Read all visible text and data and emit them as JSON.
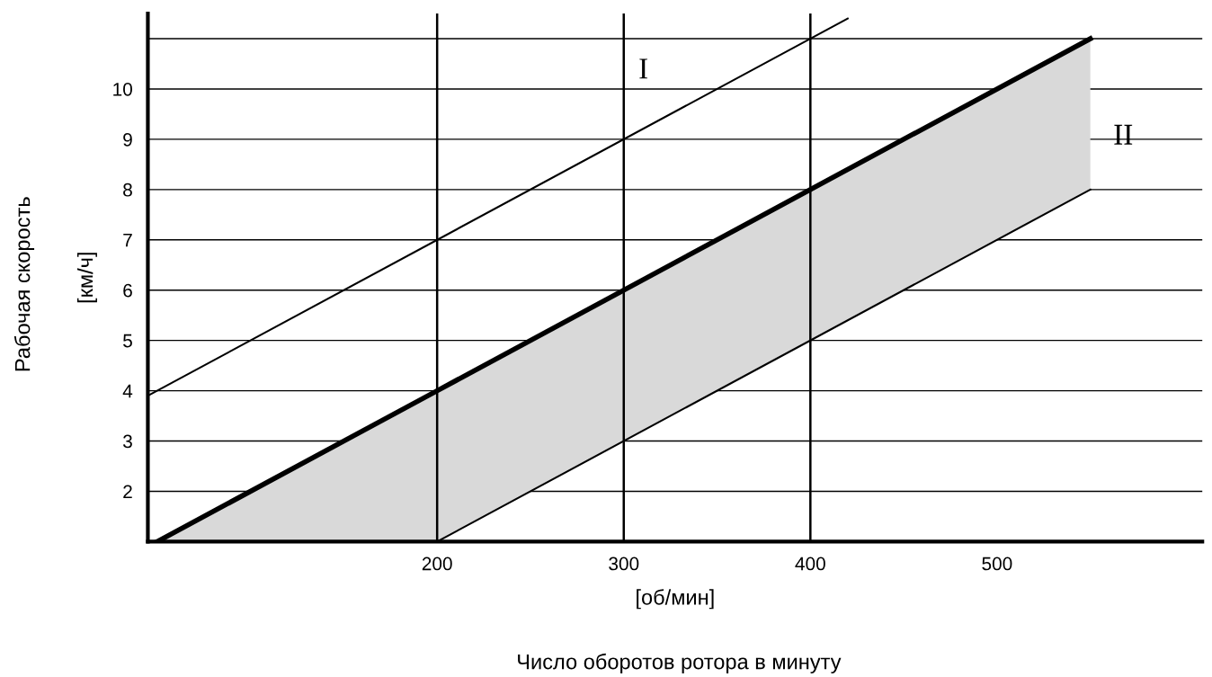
{
  "chart_data": {
    "type": "line",
    "xlabel": "[об/мин]",
    "ylabel": "[км/ч]",
    "annotations": [
      "Число оборотов ротора в минуту",
      "Рабочая скорость",
      "I",
      "II"
    ],
    "xlim": [
      45,
      610
    ],
    "ylim": [
      1,
      11.5
    ],
    "xticks": [
      200,
      300,
      400,
      500
    ],
    "yticks": [
      2,
      3,
      4,
      5,
      6,
      7,
      8,
      9,
      10,
      {
        "value": 11,
        "label": null
      }
    ],
    "grid": "y",
    "ref_lines": [
      {
        "axis": "x",
        "value": 200,
        "color": "#000000"
      },
      {
        "axis": "x",
        "value": 300,
        "color": "#000000"
      },
      {
        "axis": "x",
        "value": 400,
        "color": "#000000"
      }
    ],
    "series": [
      {
        "color": "#000000",
        "x": [
          45,
          420
        ],
        "values": [
          3.9,
          11.4
        ]
      },
      {
        "color": "#000000",
        "x": [
          50,
          200,
          550
        ],
        "values": [
          1,
          4,
          11
        ],
        "lower": [
          1,
          1,
          8
        ],
        "upper": [
          1,
          4,
          11
        ]
      },
      {
        "color": "#000000",
        "x": [
          200,
          550
        ],
        "values": [
          1,
          8
        ]
      }
    ]
  }
}
